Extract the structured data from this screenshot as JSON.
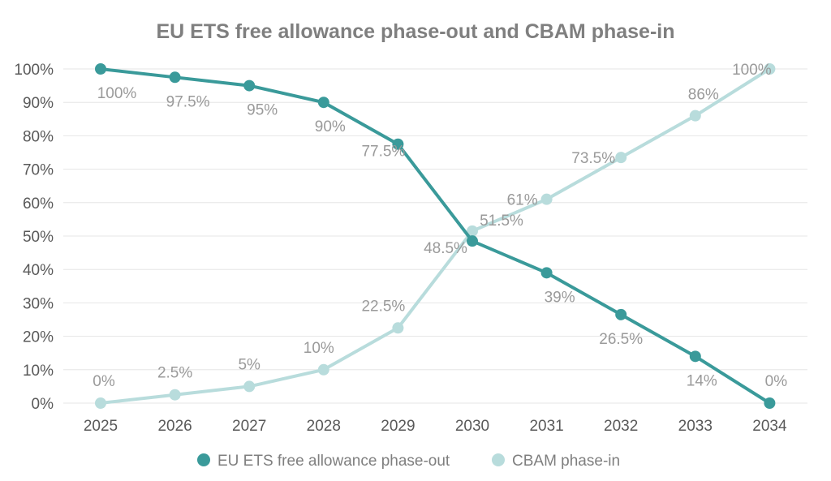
{
  "chart_data": {
    "type": "line",
    "title": "EU ETS free allowance phase-out and CBAM phase-in",
    "xlabel": "",
    "ylabel": "",
    "categories": [
      "2025",
      "2026",
      "2027",
      "2028",
      "2029",
      "2030",
      "2031",
      "2032",
      "2033",
      "2034"
    ],
    "ylim": [
      0,
      100
    ],
    "y_ticks": [
      "0%",
      "10%",
      "20%",
      "30%",
      "40%",
      "50%",
      "60%",
      "70%",
      "80%",
      "90%",
      "100%"
    ],
    "grid": true,
    "legend_position": "bottom",
    "series": [
      {
        "name": "EU ETS free allowance phase-out",
        "color": "#3a9a9a",
        "values": [
          100,
          97.5,
          95,
          90,
          77.5,
          48.5,
          39,
          26.5,
          14,
          0
        ],
        "labels": [
          "100%",
          "97.5%",
          "95%",
          "90%",
          "77.5%",
          "48.5%",
          "39%",
          "26.5%",
          "14%",
          "0%"
        ]
      },
      {
        "name": "CBAM phase-in",
        "color": "#b8dcdc",
        "values": [
          0,
          2.5,
          5,
          10,
          22.5,
          51.5,
          61,
          73.5,
          86,
          100
        ],
        "labels": [
          "0%",
          "2.5%",
          "5%",
          "10%",
          "22.5%",
          "51.5%",
          "61%",
          "73.5%",
          "86%",
          "100%"
        ]
      }
    ]
  }
}
